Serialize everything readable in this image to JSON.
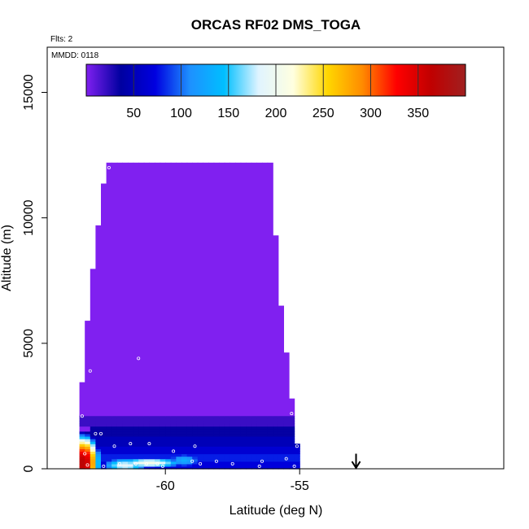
{
  "chart_data": {
    "type": "heatmap",
    "title": "ORCAS RF02 DMS_TOGA",
    "info_lines": [
      "Flts: 2",
      "MMDD: 0118"
    ],
    "xlabel": "Latitude (deg N)",
    "ylabel": "Altitude (m)",
    "xlim": [
      -64.4,
      -47.4
    ],
    "ylim": [
      0,
      16800
    ],
    "x_ticks": [
      -60,
      -55
    ],
    "x_tick_labels": [
      "-60",
      "-55"
    ],
    "y_ticks": [
      0,
      5000,
      10000,
      15000
    ],
    "y_tick_labels": [
      "0",
      "5000",
      "10000",
      "15000"
    ],
    "colorbar": {
      "min": 0,
      "max": 400,
      "ticks": [
        50,
        100,
        150,
        200,
        250,
        300,
        350
      ],
      "tick_labels": [
        "50",
        "100",
        "150",
        "200",
        "250",
        "300",
        "350"
      ],
      "color_stops": [
        "#8020f0",
        "#0000a0",
        "#0000e0",
        "#1e90ff",
        "#00bfff",
        "#e0f4ff",
        "#ffffe0",
        "#ffd700",
        "#ff8c00",
        "#ff0000",
        "#c00000",
        "#a02020"
      ]
    },
    "profile": [
      {
        "lat": -63.2,
        "top": 2200
      },
      {
        "lat": -63.0,
        "top": 4700
      },
      {
        "lat": -62.8,
        "top": 7100
      },
      {
        "lat": -62.5,
        "top": 9700
      },
      {
        "lat": -62.2,
        "top": 12200
      },
      {
        "lat": -58.0,
        "top": 12200
      },
      {
        "lat": -56.0,
        "top": 12200
      },
      {
        "lat": -55.9,
        "top": 9300
      },
      {
        "lat": -55.7,
        "top": 6500
      },
      {
        "lat": -55.4,
        "top": 3700
      },
      {
        "lat": -55.1,
        "top": 1000
      },
      {
        "lat": -54.9,
        "top": 1000
      }
    ],
    "field": {
      "lat_step": 0.2,
      "alt_step": 100,
      "background_value": 0
    },
    "near_surface_bands": [
      {
        "lat_min": -63.3,
        "lat_max": -55.0,
        "alt_min": 1700,
        "alt_max": 2100,
        "value": 20
      },
      {
        "lat_min": -62.8,
        "lat_max": -55.0,
        "alt_min": 1300,
        "alt_max": 1700,
        "value": 35
      },
      {
        "lat_min": -62.8,
        "lat_max": -55.0,
        "alt_min": 900,
        "alt_max": 1300,
        "value": 50
      },
      {
        "lat_min": -63.3,
        "lat_max": -55.0,
        "alt_min": 600,
        "alt_max": 900,
        "value": 65
      },
      {
        "lat_min": -63.3,
        "lat_max": -55.0,
        "alt_min": 300,
        "alt_max": 600,
        "value": 80
      },
      {
        "lat_min": -63.3,
        "lat_max": -55.0,
        "alt_min": 0,
        "alt_max": 300,
        "value": 70
      }
    ],
    "hotspots": [
      {
        "lat": -63.05,
        "alt": 250,
        "radius_lat": 0.7,
        "radius_alt": 1300,
        "value": 370
      },
      {
        "lat": -61.5,
        "alt": 150,
        "radius_lat": 1.0,
        "radius_alt": 350,
        "value": 190
      },
      {
        "lat": -60.6,
        "alt": 250,
        "radius_lat": 1.5,
        "radius_alt": 250,
        "value": 210
      },
      {
        "lat": -59.3,
        "alt": 350,
        "radius_lat": 0.8,
        "radius_alt": 350,
        "value": 130
      }
    ],
    "sample_points": [
      {
        "lat": -62.1,
        "alt": 12000
      },
      {
        "lat": -55.8,
        "alt": 12200
      },
      {
        "lat": -61.0,
        "alt": 4400
      },
      {
        "lat": -62.8,
        "alt": 3900
      },
      {
        "lat": -63.1,
        "alt": 2100
      },
      {
        "lat": -55.3,
        "alt": 2200
      },
      {
        "lat": -62.6,
        "alt": 1400
      },
      {
        "lat": -62.4,
        "alt": 1400
      },
      {
        "lat": -61.3,
        "alt": 1000
      },
      {
        "lat": -60.6,
        "alt": 1000
      },
      {
        "lat": -58.9,
        "alt": 900
      },
      {
        "lat": -61.9,
        "alt": 900
      },
      {
        "lat": -59.7,
        "alt": 700
      },
      {
        "lat": -55.5,
        "alt": 400
      },
      {
        "lat": -56.4,
        "alt": 300
      },
      {
        "lat": -55.1,
        "alt": 900
      },
      {
        "lat": -62.9,
        "alt": 150
      },
      {
        "lat": -62.3,
        "alt": 100
      },
      {
        "lat": -61.7,
        "alt": 200
      },
      {
        "lat": -61.1,
        "alt": 200
      },
      {
        "lat": -60.7,
        "alt": 200
      },
      {
        "lat": -60.3,
        "alt": 200
      },
      {
        "lat": -60.1,
        "alt": 100
      },
      {
        "lat": -58.7,
        "alt": 200
      },
      {
        "lat": -58.1,
        "alt": 300
      },
      {
        "lat": -57.5,
        "alt": 200
      },
      {
        "lat": -56.5,
        "alt": 100
      },
      {
        "lat": -55.2,
        "alt": 100
      },
      {
        "lat": -63.0,
        "alt": 600
      },
      {
        "lat": -59.0,
        "alt": 300
      }
    ],
    "arrow_marker": {
      "lat": -52.9,
      "alt_top": 600,
      "alt_bottom": 0
    }
  }
}
